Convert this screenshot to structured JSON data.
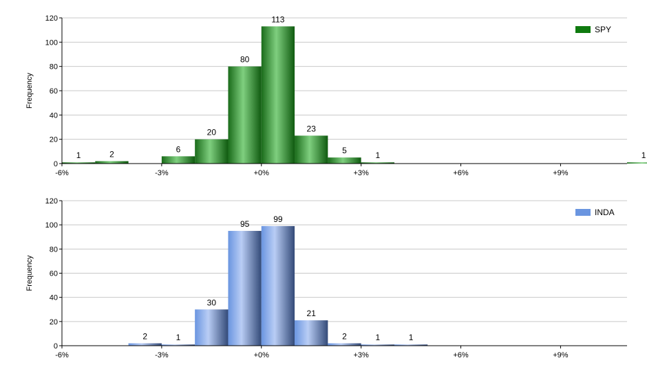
{
  "chart_data": [
    {
      "type": "bar",
      "series": [
        {
          "name": "SPY",
          "color": "#0f7a0f",
          "bars": [
            {
              "x": -6,
              "value": 1
            },
            {
              "x": -5,
              "value": 2
            },
            {
              "x": -3,
              "value": 6
            },
            {
              "x": -2,
              "value": 20
            },
            {
              "x": -1,
              "value": 80
            },
            {
              "x": 0,
              "value": 113
            },
            {
              "x": 1,
              "value": 23
            },
            {
              "x": 2,
              "value": 5
            },
            {
              "x": 3,
              "value": 1
            },
            {
              "x": 11,
              "value": 1
            }
          ]
        }
      ],
      "ylabel": "Frequency",
      "xlim": [
        -6,
        11
      ],
      "ylim": [
        0,
        120
      ],
      "xticks": [
        -6,
        -3,
        0,
        3,
        6,
        9
      ],
      "xtick_labels": [
        "-6%",
        "-3%",
        "+0%",
        "+3%",
        "+6%",
        "+9%"
      ],
      "yticks": [
        0,
        20,
        40,
        60,
        80,
        100,
        120
      ],
      "grid": true,
      "legend": "top-right"
    },
    {
      "type": "bar",
      "series": [
        {
          "name": "INDA",
          "color": "#6a95e0",
          "bars": [
            {
              "x": -4,
              "value": 2
            },
            {
              "x": -3,
              "value": 1
            },
            {
              "x": -2,
              "value": 30
            },
            {
              "x": -1,
              "value": 95
            },
            {
              "x": 0,
              "value": 99
            },
            {
              "x": 1,
              "value": 21
            },
            {
              "x": 2,
              "value": 2
            },
            {
              "x": 3,
              "value": 1
            },
            {
              "x": 4,
              "value": 1
            }
          ]
        }
      ],
      "ylabel": "Frequency",
      "xlim": [
        -6,
        11
      ],
      "ylim": [
        0,
        120
      ],
      "xticks": [
        -6,
        -3,
        0,
        3,
        6,
        9
      ],
      "xtick_labels": [
        "-6%",
        "-3%",
        "+0%",
        "+3%",
        "+6%",
        "+9%"
      ],
      "yticks": [
        0,
        20,
        40,
        60,
        80,
        100,
        120
      ],
      "grid": true,
      "legend": "top-right"
    }
  ]
}
